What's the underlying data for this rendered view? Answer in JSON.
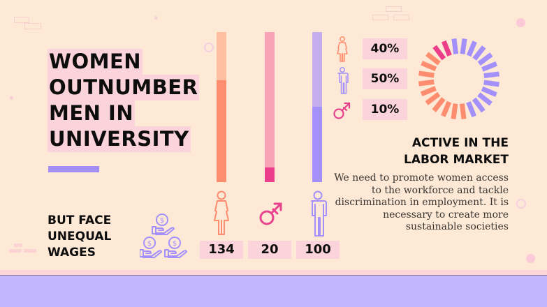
{
  "title": {
    "lines": [
      "WOMEN",
      "OUTNUMBER",
      "MEN IN",
      "UNIVERSITY"
    ]
  },
  "subtitle": {
    "lines": [
      "BUT FACE",
      "UNEQUAL",
      "WAGES"
    ]
  },
  "icons": {
    "wages": "money-hands-icon",
    "female": "female-figure-icon",
    "male": "male-figure-icon",
    "transgender": "transgender-symbol-icon"
  },
  "colors": {
    "background": "#fde9d6",
    "female_light": "#ffbfa0",
    "female": "#fe8d6f",
    "transgender_light": "#f8a3b6",
    "transgender": "#ec3d8b",
    "male_light": "#c4aef0",
    "male": "#a390fb",
    "label_bg": "#fbd3da",
    "footer": "#c2b6fe"
  },
  "university_counts": [
    {
      "group": "women",
      "value": "134"
    },
    {
      "group": "transgender",
      "value": "20"
    },
    {
      "group": "men",
      "value": "100"
    }
  ],
  "labor": {
    "percentages": [
      {
        "group": "women",
        "value": "40%"
      },
      {
        "group": "men",
        "value": "50%"
      },
      {
        "group": "transgender",
        "value": "10%"
      }
    ],
    "heading_lines": [
      "ACTIVE IN THE",
      "LABOR MARKET"
    ],
    "paragraph": "We need to promote women access to the workforce and tackle discrimination in employment. It is necessary to create more sustainable societies"
  },
  "chart_data": [
    {
      "type": "bar",
      "title": "Women outnumber men in university",
      "categories": [
        "Women",
        "Transgender",
        "Men"
      ],
      "values": [
        134,
        20,
        100
      ],
      "orientation": "vertical",
      "ylim": [
        0,
        200
      ]
    },
    {
      "type": "pie",
      "title": "Active in the labor market",
      "categories": [
        "Women",
        "Men",
        "Transgender"
      ],
      "values": [
        40,
        50,
        10
      ],
      "style": "segmented-donut"
    }
  ]
}
